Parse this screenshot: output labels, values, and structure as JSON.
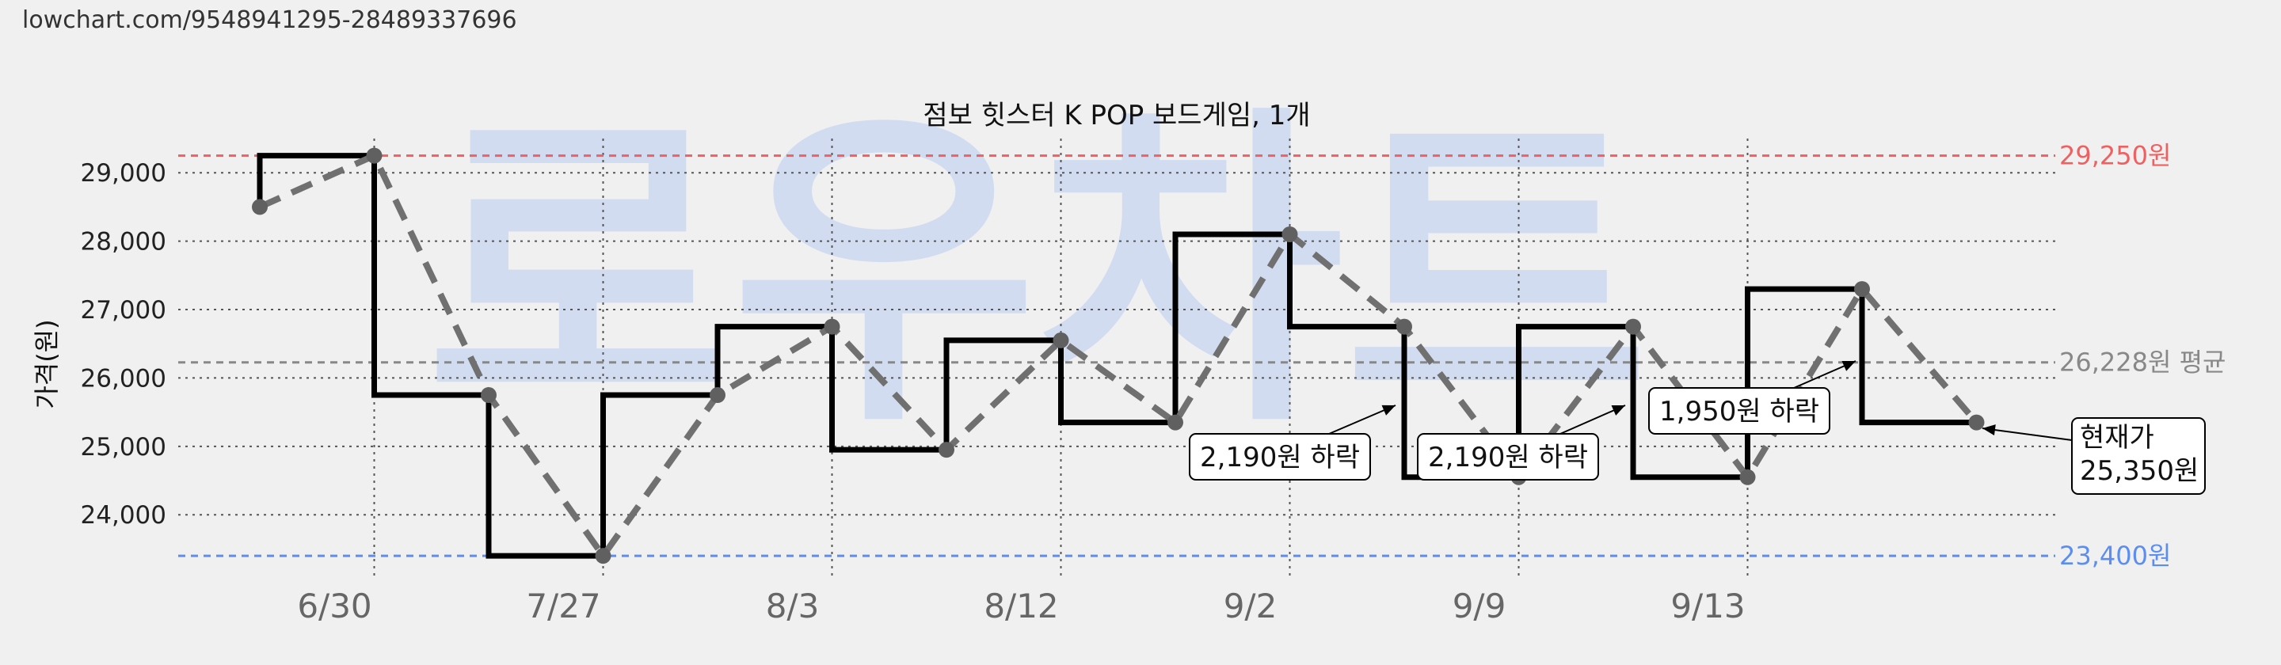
{
  "url_text": "lowchart.com/9548941295-28489337696",
  "watermark": "로우차트",
  "chart_data": {
    "type": "line",
    "title": "점보 힛스터 K POP 보드게임, 1개",
    "ylabel": "가격(원)",
    "xlabel": "",
    "ylim": [
      23100,
      29500
    ],
    "yticks": [
      24000,
      25000,
      26000,
      27000,
      28000,
      29000
    ],
    "ytick_labels": [
      "24,000",
      "25,000",
      "26,000",
      "27,000",
      "28,000",
      "29,000"
    ],
    "x_tick_labels": [
      "6/30",
      "7/27",
      "8/3",
      "8/12",
      "9/2",
      "9/9",
      "9/13"
    ],
    "x_tick_index": [
      1,
      3,
      5,
      7,
      9,
      11,
      13
    ],
    "grid": true,
    "series": [
      {
        "style": "step",
        "color": "#000000",
        "values": [
          29250,
          25750,
          23400,
          25750,
          26750,
          24950,
          26550,
          25350,
          28100,
          26750,
          24550,
          26750,
          24550,
          27300,
          25350
        ]
      },
      {
        "style": "dashed",
        "color": "#707070",
        "values": [
          28500,
          29250,
          25750,
          23400,
          25750,
          26750,
          24950,
          26550,
          25350,
          28100,
          26750,
          24550,
          26750,
          24550,
          27300,
          25350
        ]
      }
    ],
    "reference_lines": [
      {
        "value": 29250,
        "label": "29,250원",
        "color": "#f06060"
      },
      {
        "value": 26228,
        "label": "26,228원 평균",
        "color": "#888888"
      },
      {
        "value": 23400,
        "label": "23,400원",
        "color": "#5b8ef0"
      }
    ],
    "annotations": [
      {
        "text": "2,190원 하락",
        "target_index": 10
      },
      {
        "text": "2,190원 하락",
        "target_index": 12
      },
      {
        "text": "1,950원 하락",
        "target_index": 14
      },
      {
        "text_lines": [
          "현재가",
          "25,350원"
        ],
        "target_index": 15
      }
    ]
  }
}
